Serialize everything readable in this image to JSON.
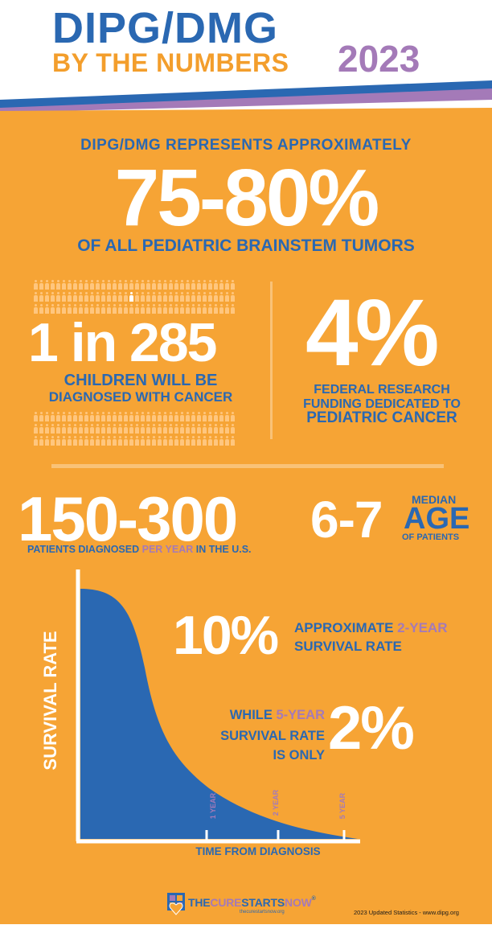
{
  "header": {
    "title": "DIPG/DMG",
    "subtitle": "BY THE NUMBERS",
    "year": "2023"
  },
  "stat_brainstem": {
    "intro": "DIPG/DMG REPRESENTS APPROXIMATELY",
    "value": "75-80%",
    "caption": "OF ALL PEDIATRIC  BRAINSTEM TUMORS"
  },
  "stat_children": {
    "value": "1 in 285",
    "caption_line1": "CHILDREN WILL BE",
    "caption_line2": "DIAGNOSED WITH CANCER"
  },
  "stat_funding": {
    "value": "4%",
    "caption_line1": "FEDERAL RESEARCH FUNDING DEDICATED TO",
    "caption_line2": "PEDIATRIC CANCER"
  },
  "stat_patients": {
    "value": "150-300",
    "caption_a": "PATIENTS DIAGNOSED ",
    "caption_b": "PER YEAR",
    "caption_c": " IN THE U.S."
  },
  "stat_age": {
    "value": "6-7",
    "label_median": "MEDIAN",
    "label_age": "AGE",
    "label_patients": "OF PATIENTS"
  },
  "stat_two_year": {
    "value": "10%",
    "caption_a": "APPROXIMATE ",
    "caption_b": "2-YEAR",
    "caption_c": "SURVIVAL RATE"
  },
  "stat_five_year": {
    "caption_a": "WHILE ",
    "caption_b": "5-YEAR",
    "caption_c": "SURVIVAL RATE",
    "caption_d": "IS ONLY",
    "value": "2%"
  },
  "chart_data": {
    "type": "area",
    "ylabel": "SURVIVAL RATE",
    "xlabel": "TIME FROM DIAGNOSIS",
    "annotations": [
      "1 YEAR",
      "2 YEAR",
      "5 YEAR"
    ]
  },
  "footer": {
    "logo_part1": "THE",
    "logo_part2": "CURE",
    "logo_part3": "STARTS",
    "logo_part4": "NOW",
    "logo_mark": "®",
    "logo_url": "thecurestartsnow.org",
    "updated": "2023 Updated Statistics - www.dipg.org"
  },
  "colors": {
    "blue": "#2a68b2",
    "orange": "#f6a435",
    "purple": "#a47ab8",
    "white": "#ffffff"
  }
}
